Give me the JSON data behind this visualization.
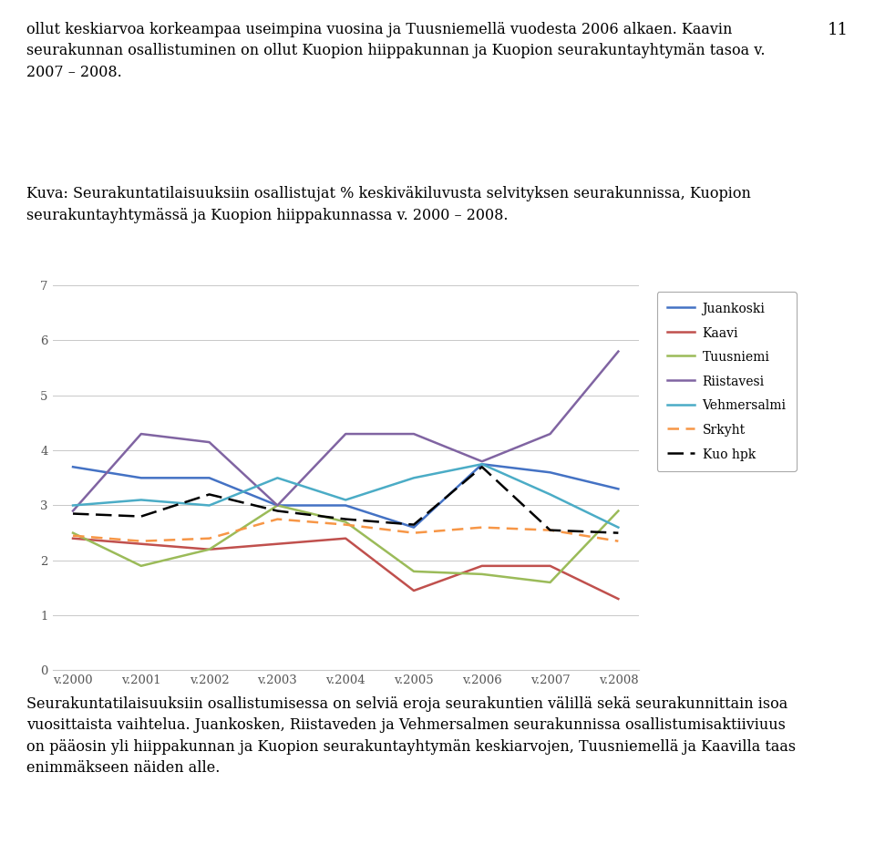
{
  "years": [
    "v.2000",
    "v.2001",
    "v.2002",
    "v.2003",
    "v.2004",
    "v.2005",
    "v.2006",
    "v.2007",
    "v.2008"
  ],
  "series": {
    "Juankoski": [
      3.7,
      3.5,
      3.5,
      3.0,
      3.0,
      2.6,
      3.75,
      3.6,
      3.3
    ],
    "Kaavi": [
      2.4,
      2.3,
      2.2,
      2.3,
      2.4,
      1.45,
      1.9,
      1.9,
      1.3
    ],
    "Tuusniemi": [
      2.5,
      1.9,
      2.2,
      3.0,
      2.7,
      1.8,
      1.75,
      1.6,
      2.9
    ],
    "Riistavesi": [
      2.9,
      4.3,
      4.15,
      3.0,
      4.3,
      4.3,
      3.8,
      4.3,
      5.8
    ],
    "Vehmersalmi": [
      3.0,
      3.1,
      3.0,
      3.5,
      3.1,
      3.5,
      3.75,
      3.2,
      2.6
    ],
    "Srkyht": [
      2.45,
      2.35,
      2.4,
      2.75,
      2.65,
      2.5,
      2.6,
      2.55,
      2.35
    ],
    "Kuohpk": [
      2.85,
      2.8,
      3.2,
      2.9,
      2.75,
      2.65,
      3.7,
      2.55,
      2.5
    ]
  },
  "colors": {
    "Juankoski": "#4472C4",
    "Kaavi": "#C0504D",
    "Tuusniemi": "#9BBB59",
    "Riistavesi": "#8064A2",
    "Vehmersalmi": "#4BACC6",
    "Srkyht": "#F79646",
    "Kuohpk": "#000000"
  },
  "ylim": [
    0,
    7
  ],
  "yticks": [
    0,
    1,
    2,
    3,
    4,
    5,
    6,
    7
  ],
  "top_text": "ollut keskiarvoa korkeampaa useimpina vuosina ja Tuusniemellä vuodesta 2006 alkaen. Kaavin\nseurakunnan osallistuminen on ollut Kuopion hiippakunnan ja Kuopion seurakuntayhtymän tasoa v.\n2007 – 2008.",
  "caption": "Kuva: Seurakuntatilaisuuksiin osallistujat % keskiväkiluvusta selvityksen seurakunnissa, Kuopion\nseurakuntayhtymässä ja Kuopion hiippakunnassa v. 2000 – 2008.",
  "bottom_text": "Seurakuntatilaisuuksiin osallistumisessa on selviä eroja seurakuntien välillä sekä seurakunnittain isoa\nvuosittaista vaihtelua. Juankosken, Riistaveden ja Vehmersalmen seurakunnissa osallistumisaktiiviuus\non pääosin yli hiippakunnan ja Kuopion seurakuntayhtymän keskiarvojen, Tuusniemellä ja Kaavilla taas\nenimmäkseen näiden alle.",
  "page_number": "11",
  "figsize": [
    9.6,
    9.49
  ],
  "background_color": "#ffffff",
  "legend_items": [
    "Juankoski",
    "Kaavi",
    "Tuusniemi",
    "Riistavesi",
    "Vehmersalmi",
    "Srkyht",
    "Kuo hpk"
  ],
  "legend_keys": [
    "Juankoski",
    "Kaavi",
    "Tuusniemi",
    "Riistavesi",
    "Vehmersalmi",
    "Srkyht",
    "Kuohpk"
  ]
}
